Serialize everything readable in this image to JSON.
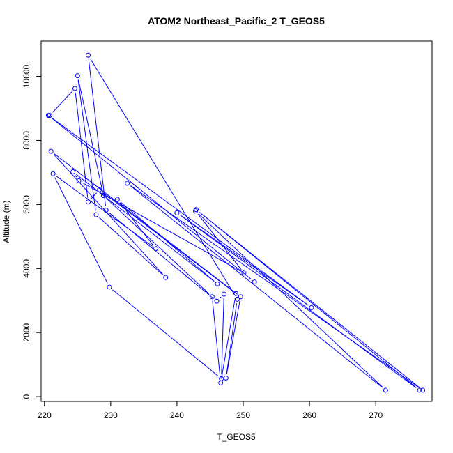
{
  "chart_data": {
    "type": "line",
    "title": "ATOM2 Northeast_Pacific_2 T_GEOS5",
    "xlabel": "T_GEOS5",
    "ylabel": "Altitude (m)",
    "xlim": [
      219.5,
      278.5
    ],
    "ylim": [
      -150,
      11100
    ],
    "xticks": [
      220,
      230,
      240,
      250,
      260,
      270
    ],
    "yticks": [
      0,
      2000,
      4000,
      6000,
      8000,
      10000
    ],
    "grid": false,
    "legend": "none",
    "series": [
      {
        "color": "#0000ff",
        "marker": "open-circle",
        "points": [
          [
            220.8,
            8780
          ],
          [
            224.6,
            9620
          ],
          [
            226.6,
            6080
          ],
          [
            228.3,
            6460
          ],
          [
            248.9,
            3220
          ],
          [
            246.6,
            430
          ],
          [
            245.3,
            3120
          ],
          [
            228.9,
            6280
          ],
          [
            225.0,
            10020
          ],
          [
            227.8,
            5680
          ],
          [
            238.3,
            3720
          ],
          [
            221.0,
            7660
          ],
          [
            249.6,
            3120
          ],
          [
            247.4,
            580
          ],
          [
            249.1,
            3040
          ],
          [
            226.6,
            10660
          ],
          [
            229.3,
            5820
          ],
          [
            246.0,
            2980
          ],
          [
            247.1,
            3200
          ],
          [
            246.7,
            560
          ],
          [
            229.8,
            3420
          ],
          [
            221.3,
            6960
          ],
          [
            236.8,
            4620
          ],
          [
            231.0,
            6160
          ],
          [
            246.1,
            3520
          ],
          [
            224.3,
            7020
          ],
          [
            225.2,
            6740
          ],
          [
            250.1,
            3860
          ],
          [
            242.8,
            5800
          ],
          [
            271.5,
            200
          ],
          [
            232.5,
            6660
          ],
          [
            277.1,
            200
          ],
          [
            242.9,
            5840
          ],
          [
            276.6,
            200
          ],
          [
            240.0,
            5740
          ],
          [
            260.3,
            2780
          ],
          [
            220.6,
            8780
          ],
          [
            251.7,
            3580
          ]
        ]
      }
    ]
  }
}
